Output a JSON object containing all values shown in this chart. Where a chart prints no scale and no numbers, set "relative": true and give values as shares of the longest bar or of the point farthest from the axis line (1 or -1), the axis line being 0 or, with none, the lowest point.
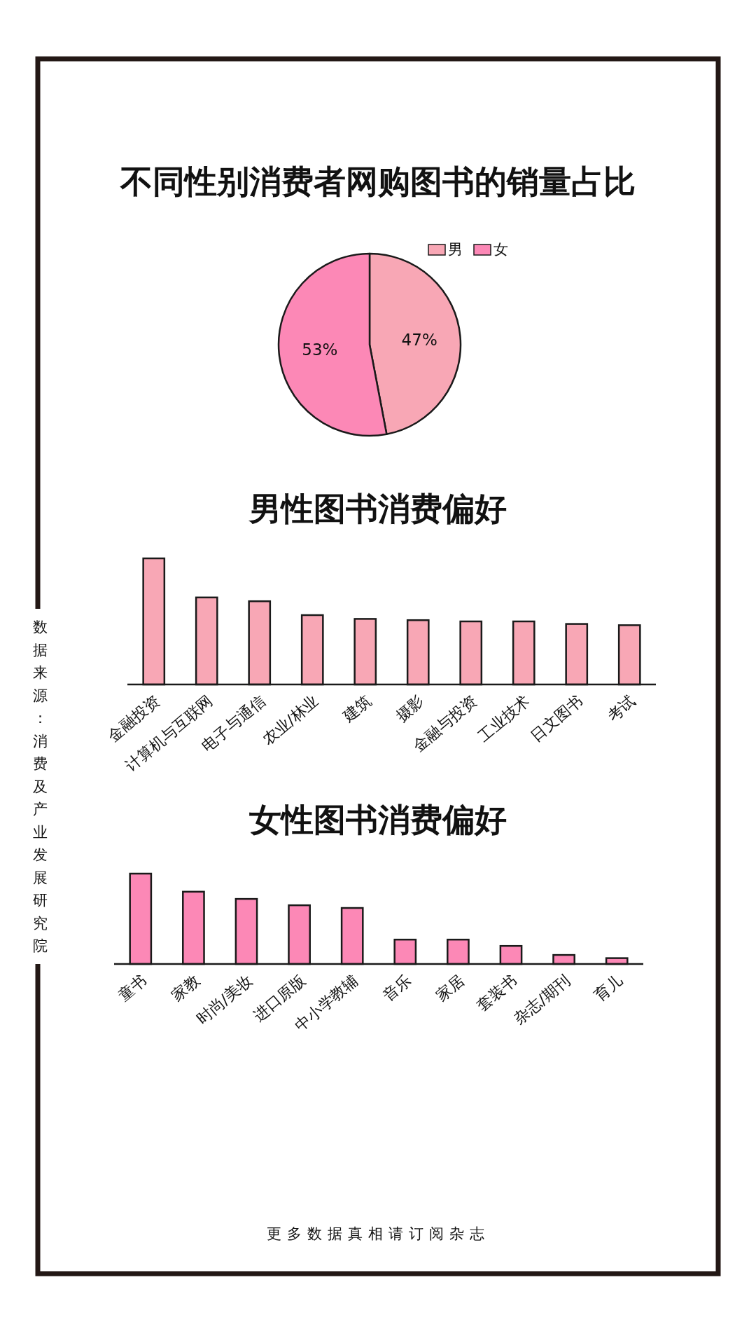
{
  "chart_data": [
    {
      "type": "pie",
      "title": "不同性别消费者网购图书的销量占比",
      "categories": [
        "男",
        "女"
      ],
      "values": [
        47,
        53
      ],
      "colors": [
        "#f8a7b5",
        "#fc88b6"
      ],
      "value_labels": [
        "47%",
        "53%"
      ],
      "legend": "top right"
    },
    {
      "type": "bar",
      "title": "男性图书消费偏好",
      "categories": [
        "金融投资",
        "计算机与互联网",
        "电子与通信",
        "农业/林业",
        "建筑",
        "摄影",
        "金融与投资",
        "工业技术",
        "日文图书",
        "考试"
      ],
      "values": [
        1,
        0.69,
        0.66,
        0.55,
        0.52,
        0.51,
        0.5,
        0.5,
        0.48,
        0.47
      ],
      "color": "#f8a7b5",
      "relative": true
    },
    {
      "type": "bar",
      "title": "女性图书消费偏好",
      "categories": [
        "童书",
        "家教",
        "时尚/美妆",
        "进口原版",
        "中小学教辅",
        "音乐",
        "家居",
        "套装书",
        "杂志/期刊",
        "育儿"
      ],
      "values": [
        1,
        0.8,
        0.72,
        0.65,
        0.62,
        0.27,
        0.27,
        0.2,
        0.1,
        0.065
      ],
      "color": "#fc88b6",
      "relative": true,
      "annotations": [
        "数据来源：消费及产业发展研究院",
        "更多数据真相请订阅杂志"
      ]
    }
  ]
}
